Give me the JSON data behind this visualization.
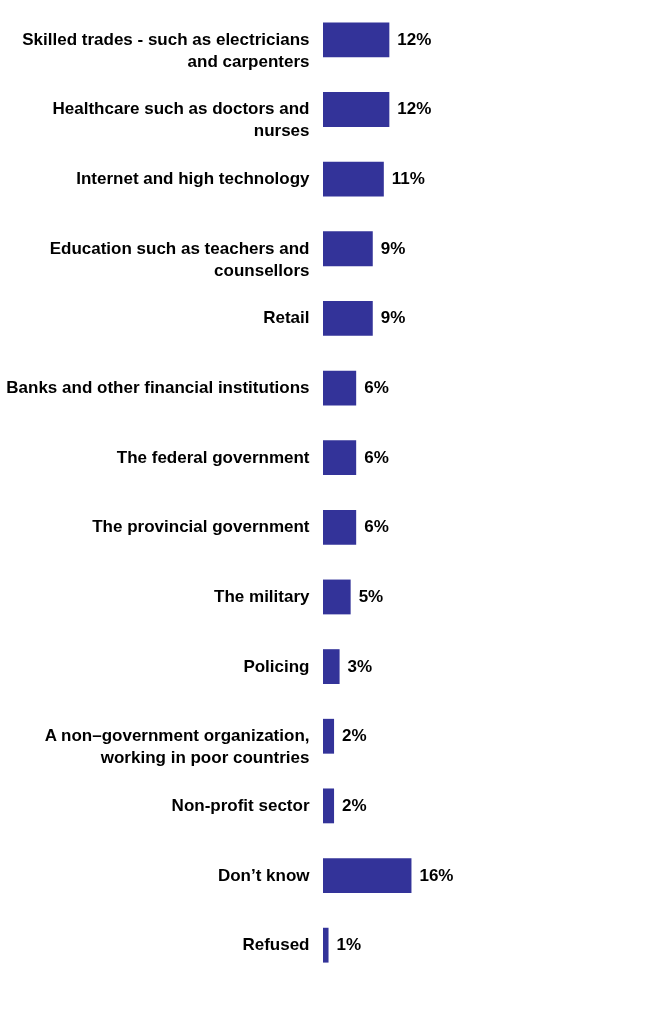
{
  "chart_data": {
    "type": "bar",
    "orientation": "horizontal",
    "color": "#333399",
    "categories": [
      "Skilled trades - such as electricians\nand carpenters",
      "Healthcare such as doctors and\nnurses",
      "Internet and high technology",
      "Education such as teachers and\ncounsellors",
      "Retail",
      "Banks and other financial institutions",
      "The federal government",
      "The provincial government",
      "The military",
      "Policing",
      "A non–government organization,\nworking in poor countries",
      "Non-profit sector",
      "Don’t know",
      "Refused"
    ],
    "values": [
      12,
      12,
      11,
      9,
      9,
      6,
      6,
      6,
      5,
      3,
      2,
      2,
      16,
      1
    ],
    "value_labels": [
      "12%",
      "12%",
      "11%",
      "9%",
      "9%",
      "6%",
      "6%",
      "6%",
      "5%",
      "3%",
      "2%",
      "2%",
      "16%",
      "1%"
    ]
  }
}
